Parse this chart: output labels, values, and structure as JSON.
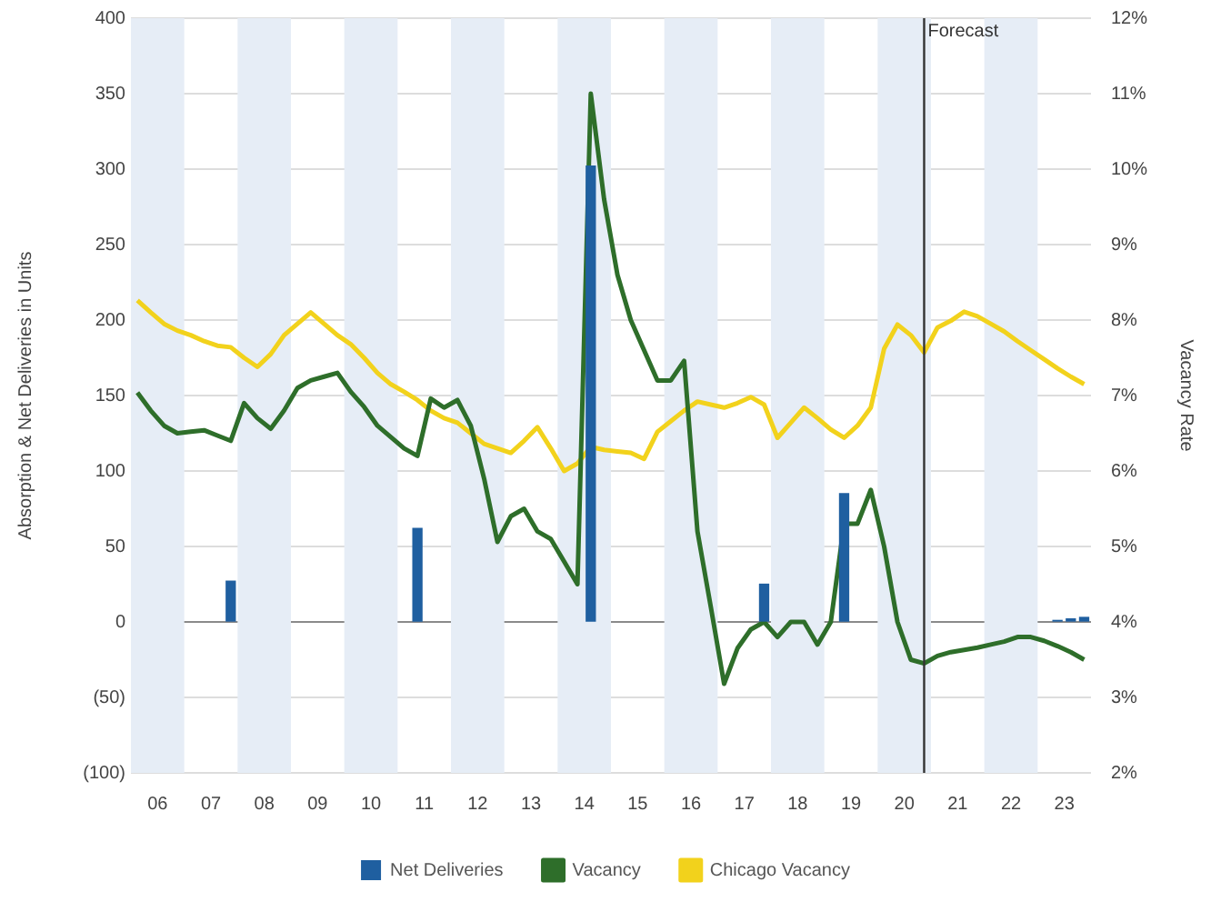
{
  "chart_data": {
    "type": "line",
    "ylabel": "Absorption & Net Deliveries in Units",
    "y2label": "Vacancy Rate",
    "xlim": [
      "2006-01-01",
      "2024-01-01"
    ],
    "xticks": [
      {
        "value": "2006-07-01",
        "label": "06"
      },
      {
        "value": "2007-07-01",
        "label": "07"
      },
      {
        "value": "2008-07-01",
        "label": "08"
      },
      {
        "value": "2009-07-01",
        "label": "09"
      },
      {
        "value": "2010-07-01",
        "label": "10"
      },
      {
        "value": "2011-07-01",
        "label": "11"
      },
      {
        "value": "2012-07-01",
        "label": "12"
      },
      {
        "value": "2013-07-01",
        "label": "13"
      },
      {
        "value": "2014-07-01",
        "label": "14"
      },
      {
        "value": "2015-07-01",
        "label": "15"
      },
      {
        "value": "2016-07-01",
        "label": "16"
      },
      {
        "value": "2017-07-01",
        "label": "17"
      },
      {
        "value": "2018-07-01",
        "label": "18"
      },
      {
        "value": "2019-07-01",
        "label": "19"
      },
      {
        "value": "2020-07-01",
        "label": "20"
      },
      {
        "value": "2021-07-01",
        "label": "21"
      },
      {
        "value": "2022-07-01",
        "label": "22"
      },
      {
        "value": "2023-07-01",
        "label": "23"
      }
    ],
    "ylim": [
      -100,
      400
    ],
    "yticks": [
      {
        "value": -100,
        "label": "(100)"
      },
      {
        "value": -50,
        "label": "(50)"
      },
      0,
      50,
      100,
      150,
      200,
      250,
      300,
      350,
      400
    ],
    "y2lim": [
      2,
      12
    ],
    "y2ticks": [
      {
        "value": 2,
        "label": "2%"
      },
      {
        "value": 3,
        "label": "3%"
      },
      {
        "value": 4,
        "label": "4%"
      },
      {
        "value": 5,
        "label": "5%"
      },
      {
        "value": 6,
        "label": "6%"
      },
      {
        "value": 7,
        "label": "7%"
      },
      {
        "value": 8,
        "label": "8%"
      },
      {
        "value": 9,
        "label": "9%"
      },
      {
        "value": 10,
        "label": "10%"
      },
      {
        "value": 11,
        "label": "11%"
      },
      {
        "value": 12,
        "label": "12%"
      }
    ],
    "grid": "y",
    "legend": "bottom",
    "marker": "none",
    "line_style": "solid",
    "x": [
      "2006-02-15",
      "2006-05-15",
      "2006-08-15",
      "2006-11-15",
      "2007-02-15",
      "2007-05-15",
      "2007-08-15",
      "2007-11-15",
      "2008-02-15",
      "2008-05-15",
      "2008-08-15",
      "2008-11-15",
      "2009-02-15",
      "2009-05-15",
      "2009-08-15",
      "2009-11-15",
      "2010-02-15",
      "2010-05-15",
      "2010-08-15",
      "2010-11-15",
      "2011-02-15",
      "2011-05-15",
      "2011-08-15",
      "2011-11-15",
      "2012-02-15",
      "2012-05-15",
      "2012-08-15",
      "2012-11-15",
      "2013-02-15",
      "2013-05-15",
      "2013-08-15",
      "2013-11-15",
      "2014-02-15",
      "2014-05-15",
      "2014-08-15",
      "2014-11-15",
      "2015-02-15",
      "2015-05-15",
      "2015-08-15",
      "2015-11-15",
      "2016-02-15",
      "2016-05-15",
      "2016-08-15",
      "2016-11-15",
      "2017-02-15",
      "2017-05-15",
      "2017-08-15",
      "2017-11-15",
      "2018-02-15",
      "2018-05-15",
      "2018-08-15",
      "2018-11-15",
      "2019-02-15",
      "2019-05-15",
      "2019-08-15",
      "2019-11-15",
      "2020-02-15",
      "2020-05-15",
      "2020-08-15",
      "2020-11-15",
      "2021-02-15",
      "2021-05-15",
      "2021-08-15",
      "2021-11-15",
      "2022-02-15",
      "2022-05-15",
      "2022-08-15",
      "2022-11-15",
      "2023-02-15",
      "2023-05-15",
      "2023-08-15",
      "2023-11-15"
    ],
    "series": [
      {
        "name": "Net Deliveries",
        "type": "bar",
        "color": "#1f5fa0",
        "x": [
          "2007-11-15",
          "2011-05-15",
          "2014-08-15",
          "2017-11-15",
          "2019-05-15",
          "2023-05-15",
          "2023-08-15",
          "2023-11-15"
        ],
        "values": [
          27,
          62,
          302,
          25,
          85,
          1,
          2,
          3
        ]
      },
      {
        "name": "Vacancy",
        "axis": "y2",
        "color": "#2e6e2a",
        "values": [
          7.04,
          6.8,
          6.6,
          6.5,
          6.52,
          6.54,
          6.47,
          6.4,
          6.9,
          6.7,
          6.56,
          6.8,
          7.1,
          7.2,
          7.25,
          7.3,
          7.05,
          6.85,
          6.6,
          6.45,
          6.3,
          6.2,
          6.96,
          6.84,
          6.94,
          6.6,
          5.9,
          5.06,
          5.4,
          5.5,
          5.2,
          5.1,
          4.8,
          4.5,
          11.0,
          9.6,
          8.6,
          8.0,
          7.6,
          7.2,
          7.2,
          7.46,
          5.2,
          4.2,
          3.18,
          3.65,
          3.9,
          4.0,
          3.8,
          4.0,
          4.0,
          3.7,
          4.0,
          5.3,
          5.3,
          5.75,
          5.0,
          4.0,
          3.5,
          3.45,
          3.55,
          3.6,
          3.63,
          3.66,
          3.7,
          3.74,
          3.8,
          3.8,
          3.75,
          3.68,
          3.6,
          3.5
        ]
      },
      {
        "name": "Chicago Vacancy",
        "axis": "y2",
        "color": "#f2d21c",
        "values": [
          8.26,
          8.1,
          7.95,
          7.86,
          7.8,
          7.72,
          7.66,
          7.64,
          7.5,
          7.38,
          7.55,
          7.8,
          7.95,
          8.1,
          7.95,
          7.8,
          7.68,
          7.5,
          7.3,
          7.15,
          7.05,
          6.94,
          6.8,
          6.7,
          6.64,
          6.5,
          6.36,
          6.3,
          6.24,
          6.4,
          6.58,
          6.3,
          6.0,
          6.1,
          6.32,
          6.28,
          6.26,
          6.24,
          6.16,
          6.52,
          6.66,
          6.8,
          6.92,
          6.88,
          6.84,
          6.9,
          6.98,
          6.88,
          6.44,
          6.64,
          6.84,
          6.7,
          6.55,
          6.44,
          6.6,
          6.84,
          7.62,
          7.94,
          7.8,
          7.57,
          7.9,
          7.99,
          8.11,
          8.05,
          7.95,
          7.85,
          7.72,
          7.6,
          7.48,
          7.36,
          7.25,
          7.15
        ]
      }
    ],
    "ref_lines": [
      {
        "axis": "x",
        "value": "2020-11-15",
        "label": "Forecast",
        "color": "#333333"
      }
    ],
    "bands": [
      {
        "axis": "x",
        "from": "2006-01-01",
        "to": "2007-01-01",
        "color": "#e6edf6"
      },
      {
        "axis": "x",
        "from": "2008-01-01",
        "to": "2009-01-01",
        "color": "#e6edf6"
      },
      {
        "axis": "x",
        "from": "2010-01-01",
        "to": "2011-01-01",
        "color": "#e6edf6"
      },
      {
        "axis": "x",
        "from": "2012-01-01",
        "to": "2013-01-01",
        "color": "#e6edf6"
      },
      {
        "axis": "x",
        "from": "2014-01-01",
        "to": "2015-01-01",
        "color": "#e6edf6"
      },
      {
        "axis": "x",
        "from": "2016-01-01",
        "to": "2017-01-01",
        "color": "#e6edf6"
      },
      {
        "axis": "x",
        "from": "2018-01-01",
        "to": "2019-01-01",
        "color": "#e6edf6"
      },
      {
        "axis": "x",
        "from": "2020-01-01",
        "to": "2021-01-01",
        "color": "#e6edf6"
      },
      {
        "axis": "x",
        "from": "2022-01-01",
        "to": "2023-01-01",
        "color": "#e6edf6"
      }
    ]
  }
}
